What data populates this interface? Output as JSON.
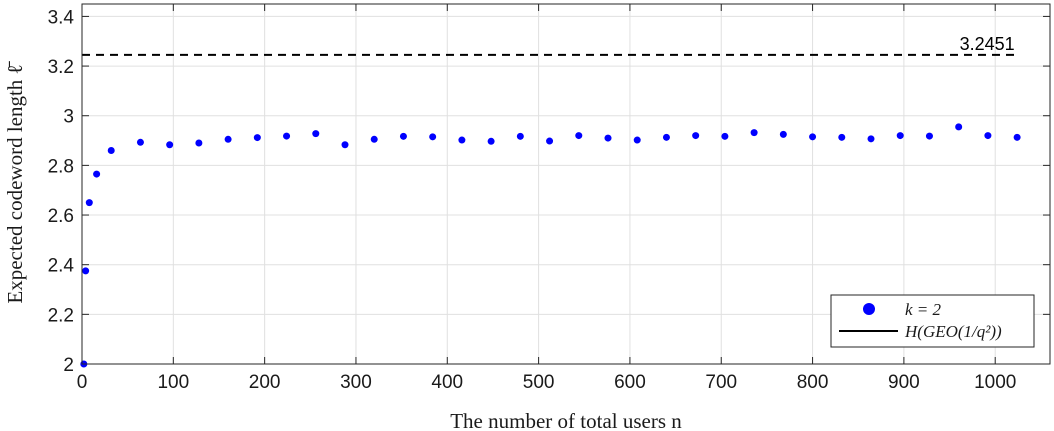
{
  "chart_data": {
    "type": "scatter",
    "xlabel": "The number of total users n",
    "ylabel": "Expected codeword length ℓ̄",
    "xlim": [
      0,
      1060
    ],
    "ylim": [
      2,
      3.45
    ],
    "xticks": [
      0,
      100,
      200,
      300,
      400,
      500,
      600,
      700,
      800,
      900,
      1000
    ],
    "yticks": [
      2,
      2.2,
      2.4,
      2.6,
      2.8,
      3,
      3.2,
      3.4
    ],
    "xtick_labels": [
      "0",
      "100",
      "200",
      "300",
      "400",
      "500",
      "600",
      "700",
      "800",
      "900",
      "1000"
    ],
    "ytick_labels": [
      "2",
      "2.2",
      "2.4",
      "2.6",
      "2.8",
      "3",
      "3.2",
      "3.4"
    ],
    "grid": true,
    "legend_position": "bottom-right",
    "series": [
      {
        "name": "k = 2",
        "kind": "scatter",
        "color": "#0000ff",
        "x": [
          2,
          4,
          8,
          16,
          32,
          64,
          96,
          128,
          160,
          192,
          224,
          256,
          288,
          320,
          352,
          384,
          416,
          448,
          480,
          512,
          544,
          576,
          608,
          640,
          672,
          704,
          736,
          768,
          800,
          832,
          864,
          896,
          928,
          960,
          992,
          1024
        ],
        "y": [
          2.0,
          2.375,
          2.65,
          2.765,
          2.86,
          2.893,
          2.883,
          2.89,
          2.905,
          2.912,
          2.918,
          2.928,
          2.883,
          2.905,
          2.917,
          2.915,
          2.902,
          2.897,
          2.917,
          2.898,
          2.92,
          2.91,
          2.902,
          2.913,
          2.92,
          2.917,
          2.932,
          2.925,
          2.915,
          2.913,
          2.907,
          2.92,
          2.918,
          2.955,
          2.92,
          2.913
        ]
      },
      {
        "name": "H(GEO(1/q²))",
        "kind": "line",
        "color": "#000000",
        "dash": "dashed",
        "x": [
          0,
          1024
        ],
        "y": [
          3.2451,
          3.2451
        ]
      }
    ],
    "annotations": [
      {
        "text": "3.2451",
        "x": 1024,
        "y": 3.2451
      }
    ]
  }
}
